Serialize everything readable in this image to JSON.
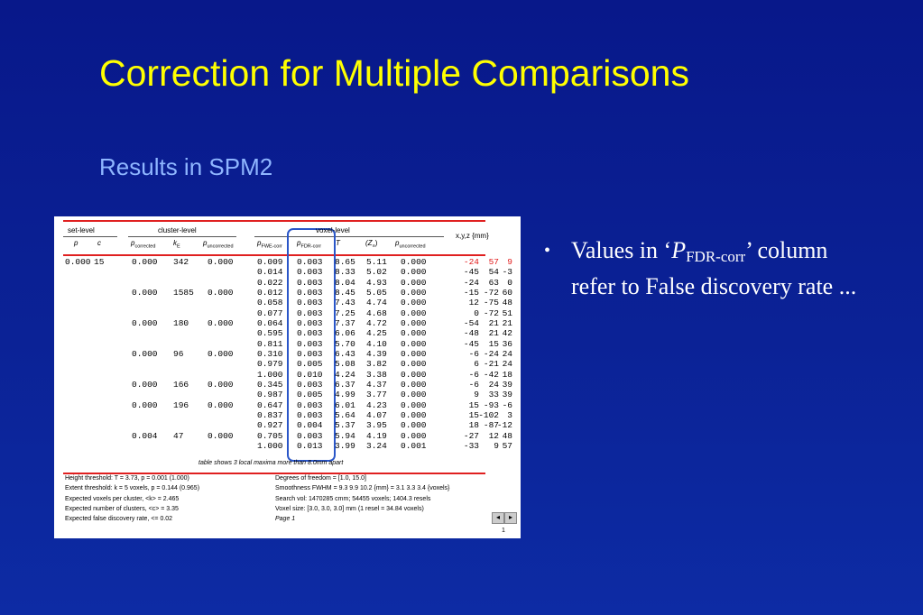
{
  "header": {
    "title": "Correction for Multiple Comparisons",
    "subtitle": "Results in SPM2"
  },
  "bullet": {
    "prefix": "Values in ‘",
    "symbol": "P",
    "subscript": "FDR-corr",
    "suffix": "’",
    "rest": "column refer to False discovery rate ..."
  },
  "table": {
    "groups": [
      "set-level",
      "cluster-level",
      "voxel-level",
      "x,y,z {mm}"
    ],
    "columns": [
      {
        "symbol": "p",
        "sub": null
      },
      {
        "symbol": "c",
        "sub": null
      },
      {
        "symbol": "p",
        "sub": "corrected"
      },
      {
        "symbol": "k",
        "sub": "E"
      },
      {
        "symbol": "p",
        "sub": "uncorrected"
      },
      {
        "symbol": "p",
        "sub": "FWE-corr"
      },
      {
        "symbol": "p",
        "sub": "FDR-corr"
      },
      {
        "symbol": "T",
        "sub": null
      },
      {
        "symbol": "(Z",
        "sub": "≡",
        "tail": ")"
      },
      {
        "symbol": "p",
        "sub": "uncorrected"
      }
    ],
    "rows": [
      [
        "0.000",
        "15",
        "0.000",
        "342",
        "0.000",
        "0.009",
        "0.003",
        "8.65",
        "5.11",
        "0.000",
        "-24",
        "57",
        "9"
      ],
      [
        null,
        null,
        null,
        null,
        null,
        "0.014",
        "0.003",
        "8.33",
        "5.02",
        "0.000",
        "-45",
        "54",
        "-3"
      ],
      [
        null,
        null,
        null,
        null,
        null,
        "0.022",
        "0.003",
        "8.04",
        "4.93",
        "0.000",
        "-24",
        "63",
        "0"
      ],
      [
        null,
        null,
        "0.000",
        "1585",
        "0.000",
        "0.012",
        "0.003",
        "8.45",
        "5.05",
        "0.000",
        "-15",
        "-72",
        "60"
      ],
      [
        null,
        null,
        null,
        null,
        null,
        "0.058",
        "0.003",
        "7.43",
        "4.74",
        "0.000",
        "12",
        "-75",
        "48"
      ],
      [
        null,
        null,
        null,
        null,
        null,
        "0.077",
        "0.003",
        "7.25",
        "4.68",
        "0.000",
        "0",
        "-72",
        "51"
      ],
      [
        null,
        null,
        "0.000",
        "180",
        "0.000",
        "0.064",
        "0.003",
        "7.37",
        "4.72",
        "0.000",
        "-54",
        "21",
        "21"
      ],
      [
        null,
        null,
        null,
        null,
        null,
        "0.595",
        "0.003",
        "6.06",
        "4.25",
        "0.000",
        "-48",
        "21",
        "42"
      ],
      [
        null,
        null,
        null,
        null,
        null,
        "0.811",
        "0.003",
        "5.70",
        "4.10",
        "0.000",
        "-45",
        "15",
        "36"
      ],
      [
        null,
        null,
        "0.000",
        "96",
        "0.000",
        "0.310",
        "0.003",
        "6.43",
        "4.39",
        "0.000",
        "-6",
        "-24",
        "24"
      ],
      [
        null,
        null,
        null,
        null,
        null,
        "0.979",
        "0.005",
        "5.08",
        "3.82",
        "0.000",
        "6",
        "-21",
        "24"
      ],
      [
        null,
        null,
        null,
        null,
        null,
        "1.000",
        "0.010",
        "4.24",
        "3.38",
        "0.000",
        "-6",
        "-42",
        "18"
      ],
      [
        null,
        null,
        "0.000",
        "166",
        "0.000",
        "0.345",
        "0.003",
        "6.37",
        "4.37",
        "0.000",
        "-6",
        "24",
        "39"
      ],
      [
        null,
        null,
        null,
        null,
        null,
        "0.987",
        "0.005",
        "4.99",
        "3.77",
        "0.000",
        "9",
        "33",
        "39"
      ],
      [
        null,
        null,
        "0.000",
        "196",
        "0.000",
        "0.647",
        "0.003",
        "6.01",
        "4.23",
        "0.000",
        "15",
        "-93",
        "-6"
      ],
      [
        null,
        null,
        null,
        null,
        null,
        "0.837",
        "0.003",
        "5.64",
        "4.07",
        "0.000",
        "15",
        "-102",
        "3"
      ],
      [
        null,
        null,
        null,
        null,
        null,
        "0.927",
        "0.004",
        "5.37",
        "3.95",
        "0.000",
        "18",
        "-87",
        "-12"
      ],
      [
        null,
        null,
        "0.004",
        "47",
        "0.000",
        "0.705",
        "0.003",
        "5.94",
        "4.19",
        "0.000",
        "-27",
        "12",
        "48"
      ],
      [
        null,
        null,
        null,
        null,
        null,
        "1.000",
        "0.013",
        "3.99",
        "3.24",
        "0.001",
        "-33",
        "9",
        "57"
      ]
    ],
    "note": "table shows 3 local maxima more than 8.0mm apart",
    "footer_left": [
      "Height threshold: T = 3.73, p = 0.001 (1.000)",
      "Extent threshold: k = 5 voxels, p = 0.144 (0.965)",
      "Expected voxels per cluster, <k> = 2.465",
      "Expected number of clusters, <c> = 3.35",
      "Expected false discovery rate, <= 0.02"
    ],
    "footer_right": [
      "Degrees of freedom = [1.0, 15.0]",
      "Smoothness FWHM = 9.3 9.9 10.2 {mm} = 3.1 3.3 3.4 {voxels}",
      "Search vol: 1470285 cmm; 54455 voxels; 1404.3 resels",
      "Voxel size: [3.0, 3.0, 3.0] mm (1 resel = 34.84 voxels)",
      "Page 1"
    ],
    "page_number": "1"
  }
}
